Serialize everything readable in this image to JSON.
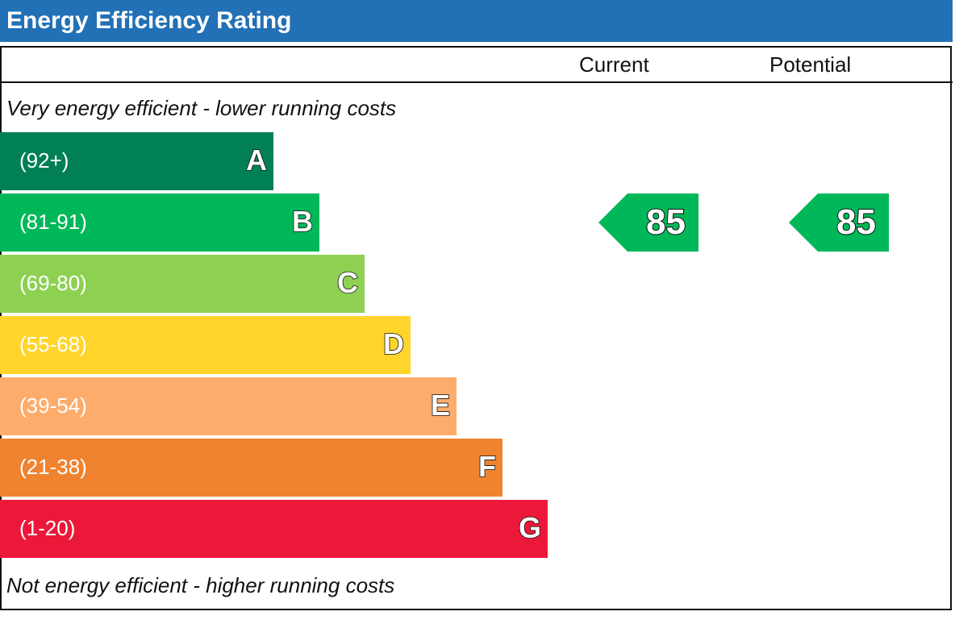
{
  "header": {
    "title": "Energy Efficiency Rating"
  },
  "columns": {
    "current": "Current",
    "potential": "Potential"
  },
  "notes": {
    "top": "Very energy efficient - lower running costs",
    "bottom": "Not energy efficient - higher running costs"
  },
  "chart_data": {
    "type": "bar",
    "title": "Energy Efficiency Rating",
    "categories": [
      "A",
      "B",
      "C",
      "D",
      "E",
      "F",
      "G"
    ],
    "ranges": [
      "(92+)",
      "(81-91)",
      "(69-80)",
      "(55-68)",
      "(39-54)",
      "(21-38)",
      "(1-20)"
    ],
    "colors": [
      "#008054",
      "#00b85a",
      "#8ed152",
      "#ffd52c",
      "#fdac6b",
      "#ef8330",
      "#ec1839"
    ],
    "current": {
      "label": "Current",
      "value": 85,
      "band": "B",
      "color": "#00b85a"
    },
    "potential": {
      "label": "Potential",
      "value": 85,
      "band": "B",
      "color": "#00b85a"
    }
  }
}
